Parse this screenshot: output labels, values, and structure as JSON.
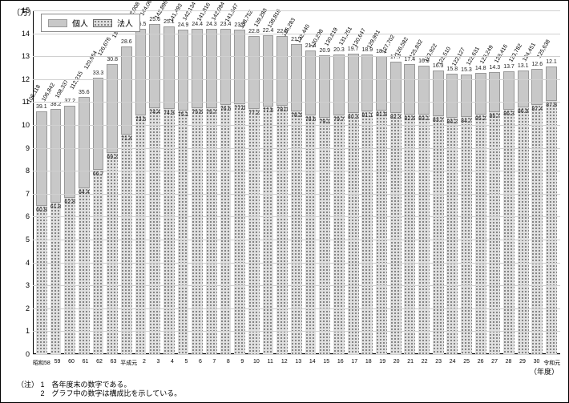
{
  "chart": {
    "type": "stacked-bar",
    "y_unit": "（万）",
    "x_title": "（年度）",
    "ylim": [
      0,
      15
    ],
    "ytick_step": 1,
    "background_color": "#ffffff",
    "grid_color": "#d0d0d0",
    "legend": {
      "kojin": "個人",
      "hojin": "法人"
    },
    "series_colors": {
      "kojin": "#c8c8c8",
      "hojin_pattern": "dots"
    },
    "bars": [
      {
        "x": "昭和58",
        "total": 106118,
        "kojin": 39.1,
        "hojin": 60.9
      },
      {
        "x": "59",
        "total": 106842,
        "kojin": 38.2,
        "hojin": 61.8
      },
      {
        "x": "60",
        "total": 108337,
        "kojin": 37.2,
        "hojin": 62.8
      },
      {
        "x": "61",
        "total": 112215,
        "kojin": 35.6,
        "hojin": 64.4
      },
      {
        "x": "62",
        "total": 120664,
        "kojin": 33.3,
        "hojin": 66.7
      },
      {
        "x": "63",
        "total": 126676,
        "kojin": 30.8,
        "hojin": 69.2
      },
      {
        "x": "平成元",
        "total": 134381,
        "kojin": 28.6,
        "hojin": 71.4
      },
      {
        "x": "2",
        "total": 142008,
        "kojin": 26.5,
        "hojin": 73.5
      },
      {
        "x": "3",
        "total": 144064,
        "kojin": 25.6,
        "hojin": 74.4
      },
      {
        "x": "4",
        "total": 142896,
        "kojin": 25.1,
        "hojin": 74.9
      },
      {
        "x": "5",
        "total": 141493,
        "kojin": 24.9,
        "hojin": 75.1
      },
      {
        "x": "6",
        "total": 142134,
        "kojin": 24.4,
        "hojin": 75.6
      },
      {
        "x": "7",
        "total": 141816,
        "kojin": 24.3,
        "hojin": 75.7
      },
      {
        "x": "8",
        "total": 142094,
        "kojin": 23.4,
        "hojin": 76.6
      },
      {
        "x": "9",
        "total": 141547,
        "kojin": 23.0,
        "hojin": 77.0
      },
      {
        "x": "10",
        "total": 138752,
        "kojin": 22.8,
        "hojin": 77.2
      },
      {
        "x": "11",
        "total": 139288,
        "kojin": 22.4,
        "hojin": 77.6
      },
      {
        "x": "12",
        "total": 138816,
        "kojin": 22.0,
        "hojin": 78.0
      },
      {
        "x": "13",
        "total": 135283,
        "kojin": 21.7,
        "hojin": 78.3
      },
      {
        "x": "14",
        "total": 132440,
        "kojin": 21.4,
        "hojin": 78.6
      },
      {
        "x": "15",
        "total": 130298,
        "kojin": 20.9,
        "hojin": 79.1
      },
      {
        "x": "16",
        "total": 130819,
        "kojin": 20.3,
        "hojin": 79.7
      },
      {
        "x": "17",
        "total": 131251,
        "kojin": 19.7,
        "hojin": 80.3
      },
      {
        "x": "18",
        "total": 130647,
        "kojin": 18.9,
        "hojin": 81.1
      },
      {
        "x": "19",
        "total": 129991,
        "kojin": 18.1,
        "hojin": 81.9
      },
      {
        "x": "20",
        "total": 127702,
        "kojin": 17.7,
        "hojin": 82.3
      },
      {
        "x": "21",
        "total": 126582,
        "kojin": 17.4,
        "hojin": 82.6
      },
      {
        "x": "22",
        "total": 125832,
        "kojin": 16.9,
        "hojin": 83.1
      },
      {
        "x": "23",
        "total": 123922,
        "kojin": 16.3,
        "hojin": 83.7
      },
      {
        "x": "24",
        "total": 122510,
        "kojin": 15.8,
        "hojin": 84.2
      },
      {
        "x": "25",
        "total": 122127,
        "kojin": 15.3,
        "hojin": 84.7
      },
      {
        "x": "26",
        "total": 122631,
        "kojin": 14.8,
        "hojin": 85.2
      },
      {
        "x": "27",
        "total": 123249,
        "kojin": 14.3,
        "hojin": 85.7
      },
      {
        "x": "28",
        "total": 123416,
        "kojin": 13.7,
        "hojin": 86.3
      },
      {
        "x": "29",
        "total": 123782,
        "kojin": 13.1,
        "hojin": 86.9
      },
      {
        "x": "30",
        "total": 124451,
        "kojin": 12.6,
        "hojin": 87.4
      },
      {
        "x": "令和元",
        "total": 125638,
        "kojin": 12.1,
        "hojin": 87.9
      }
    ],
    "notes": {
      "prefix": "（注）",
      "n1": "1　各年度末の数字である。",
      "n2": "2　グラフ中の数字は構成比を示している。"
    }
  }
}
